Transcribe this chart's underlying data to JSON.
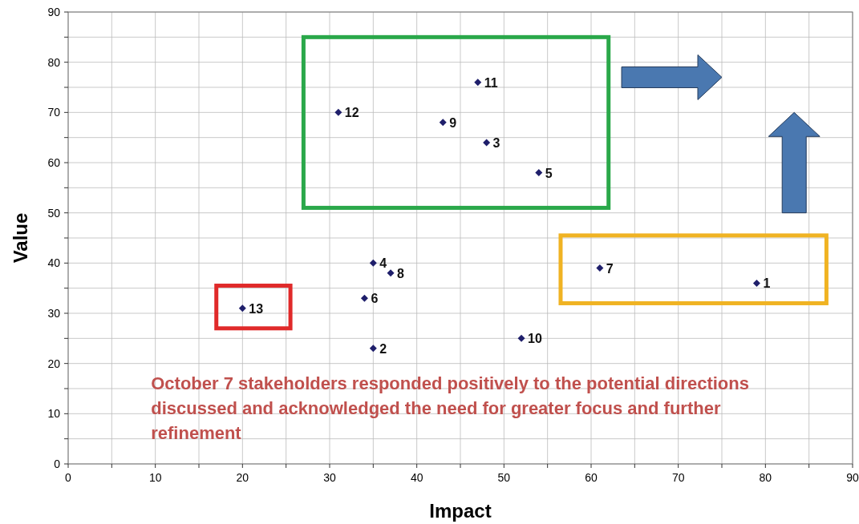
{
  "chart_data": {
    "type": "scatter",
    "xlabel": "Impact",
    "ylabel": "Value",
    "x": [
      79,
      35,
      48,
      35,
      54,
      34,
      61,
      37,
      43,
      52,
      47,
      31,
      20
    ],
    "values": [
      36,
      23,
      64,
      40,
      58,
      33,
      39,
      38,
      68,
      25,
      76,
      70,
      31
    ],
    "color": "#1f1f6b",
    "marker": "diamond",
    "grid": true,
    "xlim": [
      0,
      90
    ],
    "ylim": [
      0,
      90
    ],
    "xticks": [
      0,
      {
        "value": 5,
        "label": null
      },
      10,
      {
        "value": 15,
        "label": null
      },
      20,
      {
        "value": 25,
        "label": null
      },
      30,
      {
        "value": 35,
        "label": null
      },
      40,
      {
        "value": 45,
        "label": null
      },
      50,
      {
        "value": 55,
        "label": null
      },
      60,
      {
        "value": 65,
        "label": null
      },
      70,
      {
        "value": 75,
        "label": null
      },
      80,
      {
        "value": 85,
        "label": null
      },
      90
    ],
    "yticks": [
      0,
      {
        "value": 5,
        "label": null
      },
      10,
      {
        "value": 15,
        "label": null
      },
      20,
      {
        "value": 25,
        "label": null
      },
      30,
      {
        "value": 35,
        "label": null
      },
      40,
      {
        "value": 45,
        "label": null
      },
      50,
      {
        "value": 55,
        "label": null
      },
      60,
      {
        "value": 65,
        "label": null
      },
      70,
      {
        "value": 75,
        "label": null
      },
      80,
      {
        "value": 85,
        "label": null
      },
      90
    ],
    "annotations": [
      {
        "text": "1",
        "x": 79,
        "y": 36
      },
      {
        "text": "2",
        "x": 35,
        "y": 23
      },
      {
        "text": "3",
        "x": 48,
        "y": 64
      },
      {
        "text": "4",
        "x": 35,
        "y": 40
      },
      {
        "text": "5",
        "x": 54,
        "y": 58
      },
      {
        "text": "6",
        "x": 34,
        "y": 33
      },
      {
        "text": "7",
        "x": 61,
        "y": 39
      },
      {
        "text": "8",
        "x": 37,
        "y": 38
      },
      {
        "text": "9",
        "x": 43,
        "y": 68
      },
      {
        "text": "10",
        "x": 52,
        "y": 25
      },
      {
        "text": "11",
        "x": 47,
        "y": 76
      },
      {
        "text": "12",
        "x": 31,
        "y": 70
      },
      {
        "text": "13",
        "x": 20,
        "y": 31
      },
      "October 7 stakeholders responded positively to the potential directions discussed and acknowledged the need for greater focus and further refinement"
    ]
  }
}
